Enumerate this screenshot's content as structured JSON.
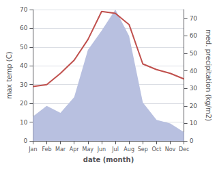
{
  "chart_data": {
    "type": "line",
    "xlabel": "date (month)",
    "ylabel": "max temp (C)",
    "y2label": "med. precipitation (kg/m2)",
    "categories": [
      "Jan",
      "Feb",
      "Mar",
      "Apr",
      "May",
      "Jun",
      "Jul",
      "Aug",
      "Sep",
      "Oct",
      "Nov",
      "Dec"
    ],
    "series": [
      {
        "type": "area",
        "axis": "y2",
        "color": "#b8c0e0",
        "values": [
          14,
          20,
          16,
          25,
          52,
          63,
          75,
          60,
          22,
          12,
          10,
          5
        ]
      },
      {
        "type": "line",
        "color": "#c0504d",
        "values": [
          29,
          30,
          36,
          43,
          54,
          69,
          68,
          62,
          41,
          38,
          36,
          33
        ]
      }
    ],
    "ylim": [
      0,
      70
    ],
    "yticks": [
      0,
      10,
      20,
      30,
      40,
      50,
      60,
      70
    ],
    "y2lim": [
      0,
      75
    ],
    "y2ticks": [
      0,
      10,
      20,
      30,
      40,
      50,
      60,
      70
    ],
    "grid": true
  }
}
